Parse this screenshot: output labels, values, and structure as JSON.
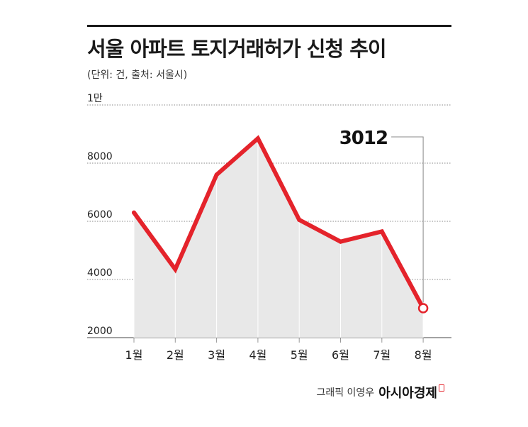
{
  "header": {
    "title": "서울 아파트 토지거래허가 신청 추이",
    "unit_note": "(단위: 건, 출처: 서울시)"
  },
  "credit": {
    "text": "그래픽 이영우",
    "brand": "아시아경제"
  },
  "chart_data": {
    "type": "area",
    "categories": [
      "1월",
      "2월",
      "3월",
      "4월",
      "5월",
      "6월",
      "7월",
      "8월"
    ],
    "values": [
      6300,
      4350,
      7600,
      8850,
      6050,
      5300,
      5650,
      3012
    ],
    "ylim": [
      2000,
      10000
    ],
    "yticks": [
      {
        "value": 2000,
        "label": "2000"
      },
      {
        "value": 4000,
        "label": "4000"
      },
      {
        "value": 6000,
        "label": "6000"
      },
      {
        "value": 8000,
        "label": "8000"
      },
      {
        "value": 10000,
        "label": "1만"
      }
    ],
    "grid": true,
    "annotation": {
      "category": "8월",
      "value": 3012,
      "label": "3012"
    },
    "colors": {
      "line": "#e4232b",
      "area": "#e8e8e8",
      "grid": "#888888",
      "marker_fill": "#ffffff"
    }
  }
}
